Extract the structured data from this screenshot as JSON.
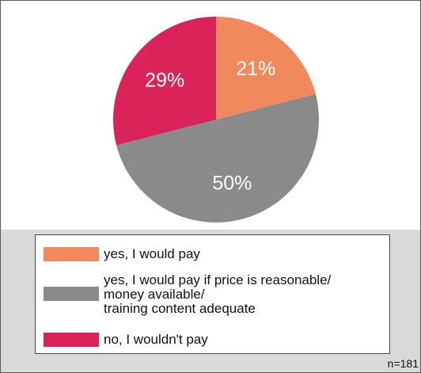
{
  "chart_data": {
    "type": "pie",
    "slices": [
      {
        "label": "yes, I would pay",
        "value": 21,
        "value_label": "21%",
        "color": "#f0895b"
      },
      {
        "label": "yes, I would pay if price is reasonable/\nmoney available/\ntraining content adequate",
        "value": 50,
        "value_label": "50%",
        "color": "#8a8a8a"
      },
      {
        "label": "no, I wouldn't pay",
        "value": 29,
        "value_label": "29%",
        "color": "#da2359"
      }
    ],
    "start_angle": "12 o'clock",
    "direction": "clockwise",
    "legend_position": "bottom",
    "note": "n=181"
  }
}
